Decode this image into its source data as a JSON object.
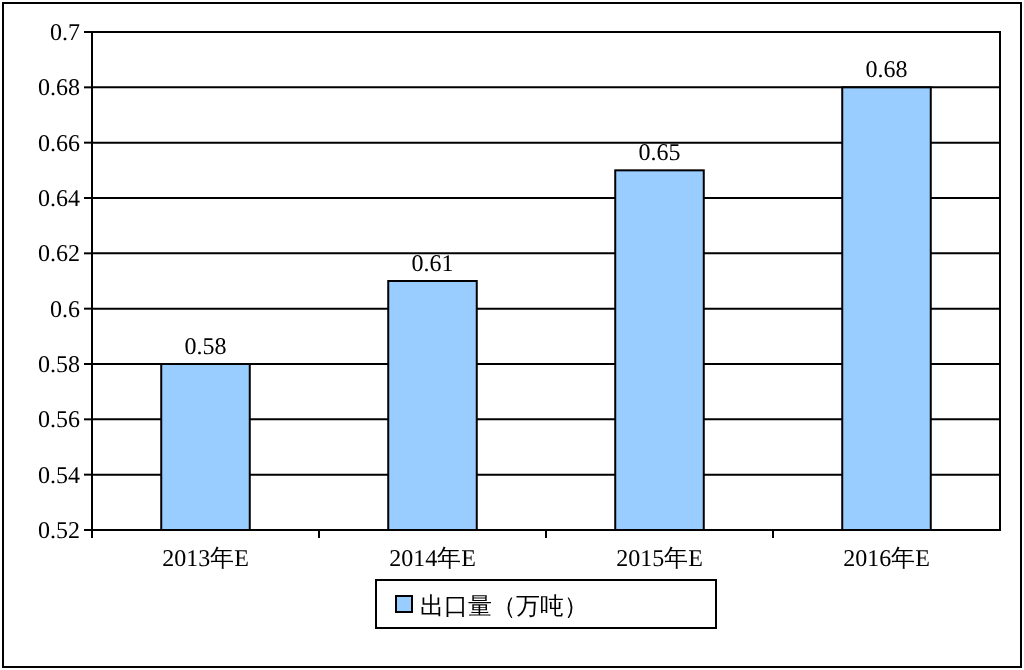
{
  "chart_data": {
    "type": "bar",
    "categories": [
      "2013年E",
      "2014年E",
      "2015年E",
      "2016年E"
    ],
    "series": [
      {
        "name": "出口量（万吨）",
        "color": "#99ccff",
        "values": [
          0.58,
          0.61,
          0.65,
          0.68
        ]
      }
    ],
    "ylim": [
      0.52,
      0.7
    ],
    "yticks": [
      0.52,
      0.54,
      0.56,
      0.58,
      0.6,
      0.62,
      0.64,
      0.66,
      0.68,
      0.7
    ],
    "grid": "y",
    "data_labels": true,
    "legend": "bottom"
  }
}
